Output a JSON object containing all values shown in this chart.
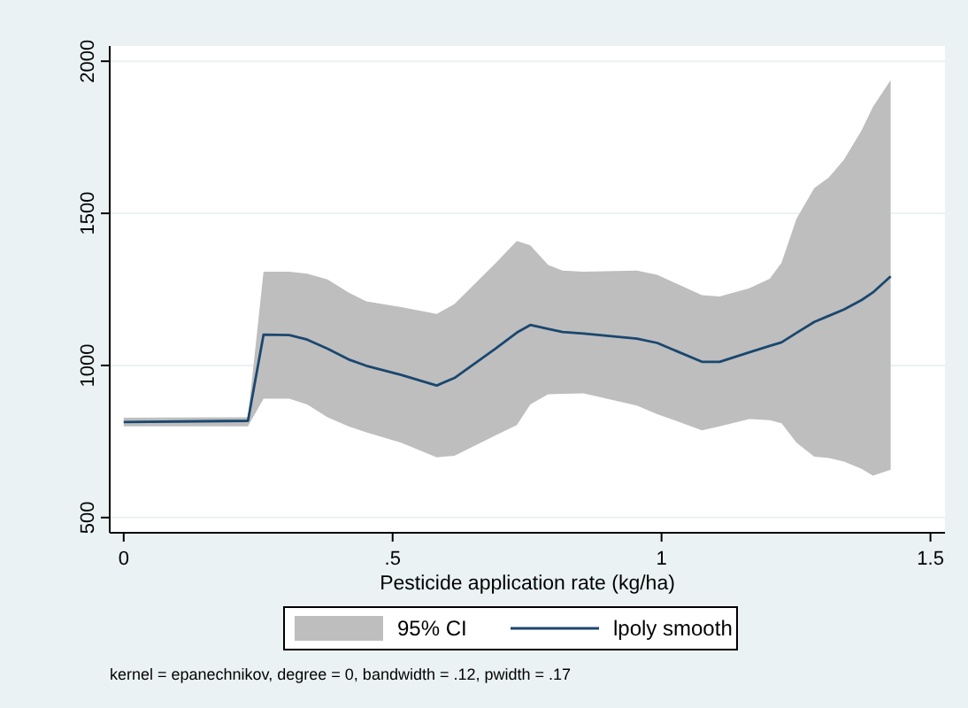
{
  "chart_data": {
    "type": "line",
    "xlabel": "Pesticide application rate (kg/ha)",
    "xlim": [
      -0.026,
      1.527
    ],
    "xticks": [
      0,
      {
        "value": 0.5,
        "label": ".5"
      },
      1,
      1.5
    ],
    "ylim": [
      450,
      2050
    ],
    "yticks": [
      500,
      1000,
      1500,
      2000
    ],
    "grid": "y",
    "legend": "bottom",
    "annotations": [
      "95% CI",
      "kernel = epanechnikov, degree = 0, bandwidth = .12, pwidth = .17"
    ],
    "series": [
      {
        "name": "lpoly smooth",
        "color": "#1a476f",
        "x": [
          0,
          0.231,
          0.26,
          0.308,
          0.341,
          0.379,
          0.418,
          0.451,
          0.516,
          0.582,
          0.615,
          0.692,
          0.731,
          0.756,
          0.789,
          0.816,
          0.855,
          0.954,
          0.992,
          1.075,
          1.108,
          1.163,
          1.201,
          1.223,
          1.251,
          1.284,
          1.311,
          1.339,
          1.372,
          1.393,
          1.426
        ],
        "values": [
          814,
          818,
          1101,
          1100,
          1085,
          1055,
          1020,
          999,
          969,
          934,
          959,
          1056,
          1108,
          1133,
          1120,
          1110,
          1105,
          1088,
          1074,
          1012,
          1012,
          1043,
          1064,
          1076,
          1107,
          1143,
          1163,
          1184,
          1215,
          1240,
          1293
        ],
        "upper": [
          828,
          830,
          1308,
          1308,
          1302,
          1283,
          1240,
          1211,
          1192,
          1169,
          1202,
          1337,
          1409,
          1395,
          1331,
          1312,
          1308,
          1312,
          1298,
          1231,
          1227,
          1254,
          1285,
          1337,
          1483,
          1583,
          1618,
          1676,
          1773,
          1850,
          1938
        ],
        "lower": [
          800,
          800,
          891,
          891,
          872,
          830,
          800,
          780,
          746,
          698,
          703,
          771,
          804,
          872,
          905,
          907,
          908,
          868,
          840,
          787,
          800,
          824,
          820,
          810,
          746,
          700,
          696,
          684,
          660,
          638,
          657
        ]
      }
    ]
  }
}
